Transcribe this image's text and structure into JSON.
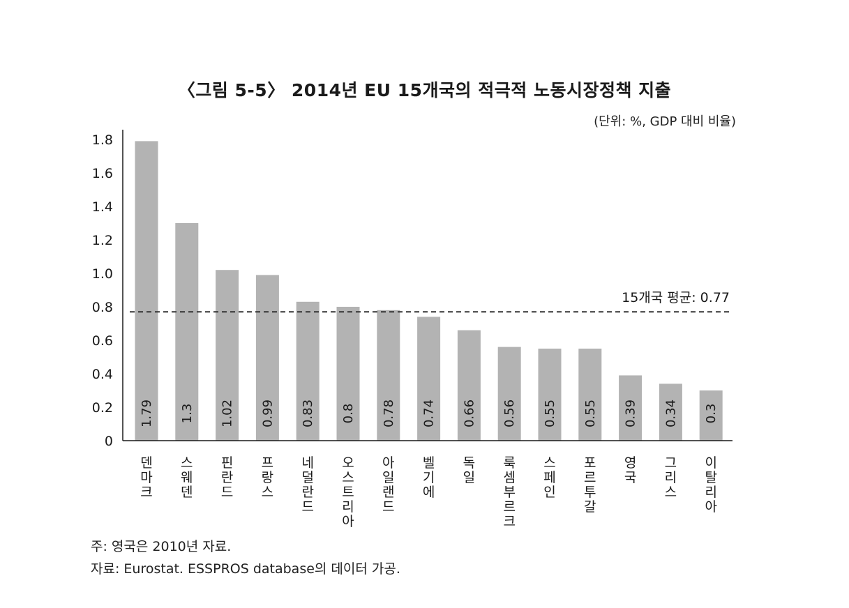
{
  "title": "〈그림 5-5〉 2014년 EU 15개국의 적극적 노동시장정책 지출",
  "unit": "(단위: %, GDP 대비 비율)",
  "notes": {
    "note": "주: 영국은 2010년 자료.",
    "source": "자료: Eurostat. ESSPROS database의 데이터 가공."
  },
  "colors": {
    "bar": "#b3b3b3",
    "axis": "#1a1a1a",
    "avg_line": "#333333"
  },
  "chart_data": {
    "type": "bar",
    "categories": [
      "덴마크",
      "스웨덴",
      "핀란드",
      "프랑스",
      "네덜란드",
      "오스트리아",
      "아일랜드",
      "벨기에",
      "독일",
      "룩셈부르크",
      "스페인",
      "포르투갈",
      "영국",
      "그리스",
      "이탈리아"
    ],
    "values": [
      1.79,
      1.3,
      1.02,
      0.99,
      0.83,
      0.8,
      0.78,
      0.74,
      0.66,
      0.56,
      0.55,
      0.55,
      0.39,
      0.34,
      0.3
    ],
    "value_labels": [
      "1.79",
      "1.3",
      "1.02",
      "0.99",
      "0.83",
      "0.8",
      "0.78",
      "0.74",
      "0.66",
      "0.56",
      "0.55",
      "0.55",
      "0.39",
      "0.34",
      "0.3"
    ],
    "y_ticks": [
      "0",
      "0.2",
      "0.4",
      "0.6",
      "0.8",
      "1.0",
      "1.2",
      "1.4",
      "1.6",
      "1.8"
    ],
    "ylim": [
      0,
      1.85
    ],
    "average": {
      "value": 0.77,
      "label": "15개국 평균: 0.77"
    },
    "grid": false
  }
}
